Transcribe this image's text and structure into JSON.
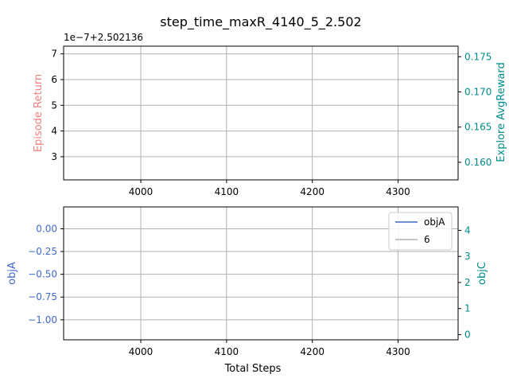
{
  "figure": {
    "title": "step_time_maxR_4140_5_2.502"
  },
  "colors": {
    "axis": "#000000",
    "grid": "#b0b0b0",
    "episode_return": "#f08080",
    "explore_reward": "#008b8b",
    "objA": "#4169c8",
    "objC": "#008b8b",
    "legend_6": "#b0b0b0"
  },
  "chart_data": [
    {
      "type": "line",
      "offset_label": "1e−7+2.502136",
      "xlim": [
        3910,
        4370
      ],
      "xticks": [
        4000,
        4100,
        4200,
        4300
      ],
      "xtick_labels": [
        "4000",
        "4100",
        "4200",
        "4300"
      ],
      "grid": true,
      "left_axis": {
        "label": "Episode Return",
        "ylim": [
          2.1,
          7.3
        ],
        "ticks": [
          3,
          4,
          5,
          6,
          7
        ],
        "tick_labels": [
          "3",
          "4",
          "5",
          "6",
          "7"
        ]
      },
      "right_axis": {
        "label": "Explore AvgReward",
        "ylim": [
          0.1575,
          0.1765
        ],
        "ticks": [
          0.16,
          0.165,
          0.17,
          0.175
        ],
        "tick_labels": [
          "0.160",
          "0.165",
          "0.170",
          "0.175"
        ]
      },
      "series": []
    },
    {
      "type": "line",
      "xlim": [
        3910,
        4370
      ],
      "xticks": [
        4000,
        4100,
        4200,
        4300
      ],
      "xtick_labels": [
        "4000",
        "4100",
        "4200",
        "4300"
      ],
      "xlabel": "Total Steps",
      "grid": true,
      "left_axis": {
        "label": "objA",
        "ylim": [
          -1.22,
          0.24
        ],
        "ticks": [
          0.0,
          -0.25,
          -0.5,
          -0.75,
          -1.0
        ],
        "tick_labels": [
          "0.00",
          "−0.25",
          "−0.50",
          "−0.75",
          "−1.00"
        ]
      },
      "right_axis": {
        "label": "objC",
        "ylim": [
          -0.2,
          4.9
        ],
        "ticks": [
          0,
          1,
          2,
          3,
          4
        ],
        "tick_labels": [
          "0",
          "1",
          "2",
          "3",
          "4"
        ]
      },
      "legend": {
        "placement": "top-right",
        "entries": [
          {
            "label": "objA",
            "color": "#4169c8"
          },
          {
            "label": "6",
            "color": "#b0b0b0"
          }
        ]
      },
      "series": []
    }
  ]
}
